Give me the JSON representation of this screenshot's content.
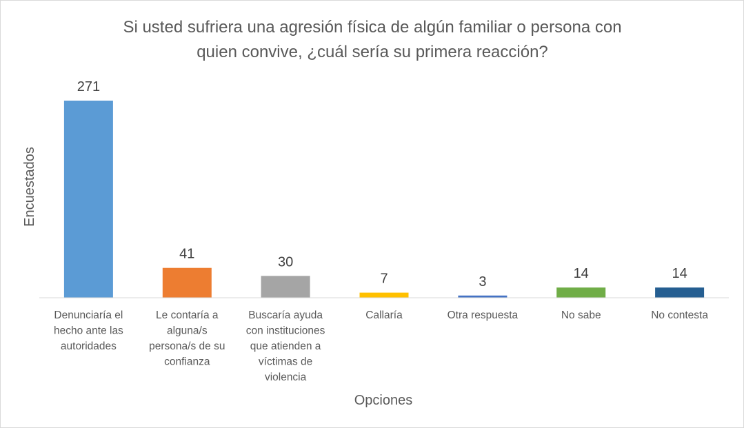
{
  "chart_data": {
    "type": "bar",
    "title": "Si usted sufriera una agresión física de algún familiar o persona con quien convive, ¿cuál sería su primera reacción?",
    "title_lines": [
      "Si usted sufriera una agresión física de algún familiar o persona con",
      "quien convive, ¿cuál sería su primera reacción?"
    ],
    "xlabel": "Opciones",
    "ylabel": "Encuestados",
    "ylim": [
      0,
      271
    ],
    "grid": false,
    "legend": "none",
    "categories": [
      "Denunciaría el hecho ante las autoridades",
      "Le contaría a alguna/s persona/s de su confianza",
      "Buscaría ayuda con instituciones que atienden a víctimas de violencia",
      "Callaría",
      "Otra respuesta",
      "No sabe",
      "No contesta"
    ],
    "category_lines": [
      [
        "Denunciaría el",
        "hecho ante las",
        "autoridades"
      ],
      [
        "Le contaría a",
        "alguna/s",
        "persona/s de su",
        "confianza"
      ],
      [
        "Buscaría ayuda",
        "con instituciones",
        "que atienden a",
        "víctimas de",
        "violencia"
      ],
      [
        "Callaría"
      ],
      [
        "Otra respuesta"
      ],
      [
        "No sabe"
      ],
      [
        "No contesta"
      ]
    ],
    "values": [
      271,
      41,
      30,
      7,
      3,
      14,
      14
    ],
    "data_labels": [
      "271",
      "41",
      "30",
      "7",
      "3",
      "14",
      "14"
    ],
    "colors": [
      "#5b9bd5",
      "#ed7d31",
      "#a5a5a5",
      "#ffc000",
      "#4472c4",
      "#70ad47",
      "#255e91"
    ]
  }
}
